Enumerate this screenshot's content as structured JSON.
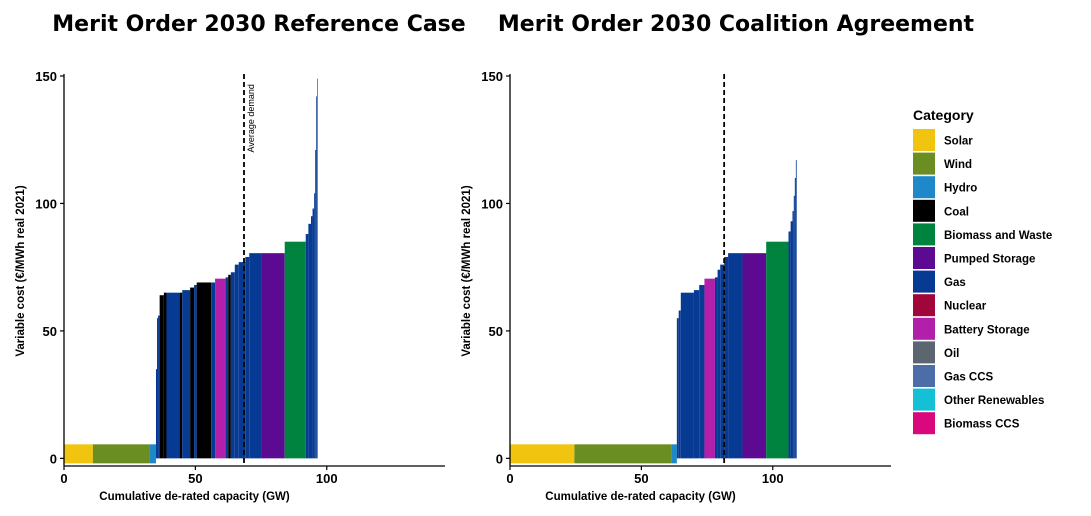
{
  "legend": {
    "title": "Category",
    "placement": "right",
    "items": [
      {
        "label": "Solar",
        "color": "#F1C40F"
      },
      {
        "label": "Wind",
        "color": "#6B8E23"
      },
      {
        "label": "Hydro",
        "color": "#1E88C8"
      },
      {
        "label": "Coal",
        "color": "#000000"
      },
      {
        "label": "Biomass and Waste",
        "color": "#00833E"
      },
      {
        "label": "Pumped Storage",
        "color": "#5B0A91"
      },
      {
        "label": "Gas",
        "color": "#073A93"
      },
      {
        "label": "Nuclear",
        "color": "#A0063A"
      },
      {
        "label": "Battery Storage",
        "color": "#B21FAA"
      },
      {
        "label": "Oil",
        "color": "#5C6670"
      },
      {
        "label": "Gas CCS",
        "color": "#4C6EA8"
      },
      {
        "label": "Other Renewables",
        "color": "#14C0D6"
      },
      {
        "label": "Biomass CCS",
        "color": "#D9087C"
      }
    ]
  },
  "chart_data": [
    {
      "type": "bar",
      "title": "Merit Order 2030 Reference Case",
      "xlabel": "Cumulative de-rated capacity (GW)",
      "ylabel": "Variable cost (€/MWh real 2021)",
      "xlim": [
        0,
        145
      ],
      "ylim": [
        -3,
        150
      ],
      "xticks": [
        "0",
        "50",
        "100"
      ],
      "yticks": [
        "0",
        "50",
        "100",
        "150"
      ],
      "grid": false,
      "average_demand": 68.5,
      "annotation": "Average demand",
      "segments": [
        {
          "category": "Solar",
          "x0": 0,
          "x1": 11,
          "y": 0
        },
        {
          "category": "Wind",
          "x0": 11,
          "x1": 32.5,
          "y": 0
        },
        {
          "category": "Hydro",
          "x0": 32.5,
          "x1": 35,
          "y": 0
        },
        {
          "category": "Gas",
          "x0": 35,
          "x1": 35.4,
          "y": 35
        },
        {
          "category": "Gas",
          "x0": 35.4,
          "x1": 35.8,
          "y": 55
        },
        {
          "category": "Gas",
          "x0": 35.8,
          "x1": 36.4,
          "y": 56
        },
        {
          "category": "Coal",
          "x0": 36.4,
          "x1": 38,
          "y": 64
        },
        {
          "category": "Coal",
          "x0": 38,
          "x1": 39,
          "y": 65
        },
        {
          "category": "Gas",
          "x0": 39,
          "x1": 44,
          "y": 65
        },
        {
          "category": "Coal",
          "x0": 44,
          "x1": 45,
          "y": 65
        },
        {
          "category": "Gas",
          "x0": 45,
          "x1": 48,
          "y": 66
        },
        {
          "category": "Coal",
          "x0": 48,
          "x1": 49.5,
          "y": 67
        },
        {
          "category": "Gas",
          "x0": 49.5,
          "x1": 50.5,
          "y": 68
        },
        {
          "category": "Coal",
          "x0": 50.5,
          "x1": 56,
          "y": 69
        },
        {
          "category": "Gas",
          "x0": 56,
          "x1": 57.5,
          "y": 69
        },
        {
          "category": "Battery Storage",
          "x0": 57.5,
          "x1": 61.5,
          "y": 70.5
        },
        {
          "category": "Gas",
          "x0": 61.5,
          "x1": 62.5,
          "y": 71
        },
        {
          "category": "Coal",
          "x0": 62.5,
          "x1": 63.5,
          "y": 72
        },
        {
          "category": "Gas",
          "x0": 63.5,
          "x1": 65,
          "y": 73
        },
        {
          "category": "Gas",
          "x0": 65,
          "x1": 66.5,
          "y": 76
        },
        {
          "category": "Gas",
          "x0": 66.5,
          "x1": 69,
          "y": 77
        },
        {
          "category": "Gas",
          "x0": 69,
          "x1": 70.5,
          "y": 79
        },
        {
          "category": "Gas",
          "x0": 70.5,
          "x1": 75,
          "y": 80.5
        },
        {
          "category": "Pumped Storage",
          "x0": 75,
          "x1": 84,
          "y": 80.5
        },
        {
          "category": "Biomass and Waste",
          "x0": 84,
          "x1": 92,
          "y": 85
        },
        {
          "category": "Gas",
          "x0": 92,
          "x1": 93,
          "y": 88
        },
        {
          "category": "Gas",
          "x0": 93,
          "x1": 94,
          "y": 92
        },
        {
          "category": "Gas",
          "x0": 94,
          "x1": 94.6,
          "y": 95
        },
        {
          "category": "Gas",
          "x0": 94.6,
          "x1": 95.2,
          "y": 98
        },
        {
          "category": "Gas",
          "x0": 95.2,
          "x1": 95.6,
          "y": 104
        },
        {
          "category": "Gas",
          "x0": 95.6,
          "x1": 96,
          "y": 121
        },
        {
          "category": "Gas",
          "x0": 96,
          "x1": 96.3,
          "y": 142
        },
        {
          "category": "Gas CCS",
          "x0": 96.3,
          "x1": 96.6,
          "y": 149
        }
      ]
    },
    {
      "type": "bar",
      "title": "Merit Order 2030 Coalition Agreement",
      "xlabel": "Cumulative de-rated capacity (GW)",
      "ylabel": "Variable cost (€/MWh real 2021)",
      "xlim": [
        0,
        145
      ],
      "ylim": [
        -3,
        150
      ],
      "xticks": [
        "0",
        "50",
        "100"
      ],
      "yticks": [
        "0",
        "50",
        "100",
        "150"
      ],
      "grid": false,
      "average_demand": 81.5,
      "segments": [
        {
          "category": "Solar",
          "x0": 0,
          "x1": 24.5,
          "y": 0
        },
        {
          "category": "Wind",
          "x0": 24.5,
          "x1": 61.5,
          "y": 0
        },
        {
          "category": "Hydro",
          "x0": 61.5,
          "x1": 63.5,
          "y": 0
        },
        {
          "category": "Gas",
          "x0": 63.5,
          "x1": 64.2,
          "y": 55
        },
        {
          "category": "Gas",
          "x0": 64.2,
          "x1": 65,
          "y": 58
        },
        {
          "category": "Gas",
          "x0": 65,
          "x1": 70,
          "y": 65
        },
        {
          "category": "Gas",
          "x0": 70,
          "x1": 72,
          "y": 66
        },
        {
          "category": "Gas",
          "x0": 72,
          "x1": 74,
          "y": 68
        },
        {
          "category": "Battery Storage",
          "x0": 74,
          "x1": 78,
          "y": 70.5
        },
        {
          "category": "Gas",
          "x0": 78,
          "x1": 79,
          "y": 71
        },
        {
          "category": "Gas",
          "x0": 79,
          "x1": 80,
          "y": 74
        },
        {
          "category": "Gas",
          "x0": 80,
          "x1": 81.5,
          "y": 76
        },
        {
          "category": "Gas",
          "x0": 81.5,
          "x1": 83,
          "y": 79
        },
        {
          "category": "Gas",
          "x0": 83,
          "x1": 88.5,
          "y": 80.5
        },
        {
          "category": "Pumped Storage",
          "x0": 88.5,
          "x1": 97.5,
          "y": 80.5
        },
        {
          "category": "Biomass and Waste",
          "x0": 97.5,
          "x1": 106,
          "y": 85
        },
        {
          "category": "Gas",
          "x0": 106,
          "x1": 106.8,
          "y": 89
        },
        {
          "category": "Gas",
          "x0": 106.8,
          "x1": 107.5,
          "y": 93
        },
        {
          "category": "Gas",
          "x0": 107.5,
          "x1": 108,
          "y": 97
        },
        {
          "category": "Gas",
          "x0": 108,
          "x1": 108.4,
          "y": 103
        },
        {
          "category": "Gas",
          "x0": 108.4,
          "x1": 108.8,
          "y": 110
        },
        {
          "category": "Gas",
          "x0": 108.8,
          "x1": 109.1,
          "y": 117
        }
      ]
    }
  ]
}
